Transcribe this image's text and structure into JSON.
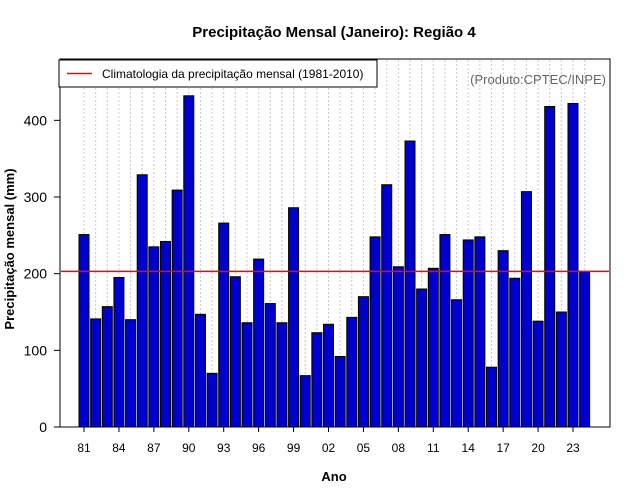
{
  "chart_data": {
    "type": "bar",
    "title": "Precipitação Mensal (Janeiro): Região 4",
    "xlabel": "Ano",
    "ylabel": "Precipitação mensal (mm)",
    "credit": "(Produto:CPTEC/INPE)",
    "legend": {
      "label": "Climatologia da precipitação mensal (1981-2010)",
      "placement": "top-left"
    },
    "categories": [
      "81",
      "82",
      "83",
      "84",
      "85",
      "86",
      "87",
      "88",
      "89",
      "90",
      "91",
      "92",
      "93",
      "94",
      "95",
      "96",
      "97",
      "98",
      "99",
      "00",
      "01",
      "02",
      "03",
      "04",
      "05",
      "06",
      "07",
      "08",
      "09",
      "10",
      "11",
      "12",
      "13",
      "14",
      "15",
      "16",
      "17",
      "18",
      "19",
      "20",
      "21",
      "22",
      "23",
      "24"
    ],
    "tick_labels": [
      "81",
      "84",
      "87",
      "90",
      "93",
      "96",
      "99",
      "02",
      "05",
      "08",
      "11",
      "14",
      "17",
      "20",
      "23"
    ],
    "values": [
      251,
      141,
      157,
      195,
      140,
      329,
      235,
      242,
      309,
      432,
      147,
      70,
      266,
      196,
      136,
      219,
      161,
      136,
      286,
      67,
      123,
      134,
      92,
      143,
      170,
      248,
      316,
      209,
      373,
      180,
      207,
      251,
      166,
      244,
      248,
      78,
      230,
      194,
      307,
      138,
      418,
      150,
      422,
      203
    ],
    "climatology": 203,
    "ylim": [
      0,
      480
    ],
    "yticks": [
      0,
      100,
      200,
      300,
      400
    ],
    "grid": "vertical-dotted",
    "colors": {
      "bar": "#0000cc",
      "bar_edge": "#000000",
      "climatology": "#ff0000",
      "grid": "#c8c8c8",
      "credit": "#666666"
    }
  }
}
